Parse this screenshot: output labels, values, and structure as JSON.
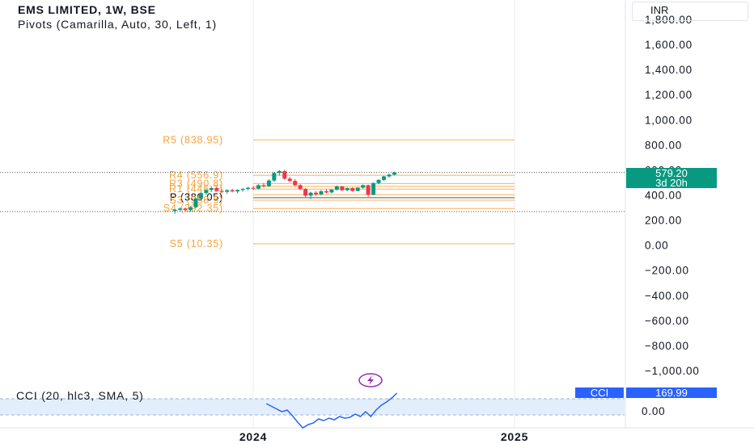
{
  "header": {
    "title": "EMS LIMITED, 1W, BSE",
    "subtitle": "Pivots (Camarilla, Auto, 30, Left, 1)"
  },
  "currency_label": "INR",
  "price_badge": {
    "price": "579.20",
    "countdown": "3d 20h"
  },
  "cci": {
    "label": "CCI (20, hlc3, SMA, 5)",
    "badge_name": "CCI",
    "badge_value": "169.99",
    "zero_label": "0.00"
  },
  "colors": {
    "pivot": "#f7a33a",
    "pivot_p": "#000000",
    "up": "#089981",
    "down": "#f23645",
    "cci_line": "#2962ff",
    "cci_band": "#e3eefc",
    "badge_green": "#089981",
    "badge_blue": "#2962ff",
    "lightning": "#9c27b0"
  },
  "chart_data": {
    "type": "candlestick",
    "title": "EMS LIMITED, 1W, BSE",
    "y_axis": {
      "range": [
        -1100,
        1900
      ],
      "ticks": [
        "1,800.00",
        "1,600.00",
        "1,400.00",
        "1,200.00",
        "1,000.00",
        "800.00",
        "600.00",
        "400.00",
        "200.00",
        "0.00",
        "−200.00",
        "−400.00",
        "−600.00",
        "−800.00",
        "−1,000.00"
      ],
      "tick_values": [
        1800,
        1600,
        1400,
        1200,
        1000,
        800,
        600,
        400,
        200,
        0,
        -200,
        -400,
        -600,
        -800,
        -1000
      ]
    },
    "x_axis": {
      "ticks": [
        "2024",
        "2025"
      ],
      "x_range": [
        2023.0,
        2025.0
      ],
      "tick_values": [
        2024,
        2025
      ]
    },
    "pivot_levels": [
      {
        "name": "R5",
        "label": "R5 (838.95)",
        "value": 838.95
      },
      {
        "name": "R4",
        "label": "R4 (556.9)",
        "value": 556.9
      },
      {
        "name": "R3",
        "label": "R3 (490.8)",
        "value": 490.8
      },
      {
        "name": "R2",
        "value": 468.7
      },
      {
        "name": "R1",
        "label": "R1 (446.7)",
        "value": 446.7
      },
      {
        "name": "P",
        "label": "P (380.05)",
        "value": 380.05
      },
      {
        "name": "S1",
        "value": 402.6
      },
      {
        "name": "S2",
        "value": 380.5
      },
      {
        "name": "S3",
        "label": "S3 (358.5)",
        "value": 358.5
      },
      {
        "name": "S4",
        "label": "S4 (292.35)",
        "value": 292.35
      },
      {
        "name": "S5",
        "label": "S5 (10.35)",
        "value": 10.35
      }
    ],
    "last_price": 579.2,
    "ohlc": [
      [
        2023.7,
        272,
        288,
        250,
        282
      ],
      [
        2023.72,
        282,
        300,
        265,
        292
      ],
      [
        2023.74,
        292,
        300,
        272,
        280
      ],
      [
        2023.76,
        280,
        310,
        265,
        302
      ],
      [
        2023.78,
        302,
        380,
        295,
        372
      ],
      [
        2023.8,
        372,
        425,
        360,
        415
      ],
      [
        2023.82,
        415,
        450,
        400,
        440
      ],
      [
        2023.84,
        440,
        465,
        425,
        455
      ],
      [
        2023.86,
        455,
        465,
        425,
        432
      ],
      [
        2023.88,
        432,
        445,
        415,
        425
      ],
      [
        2023.9,
        425,
        445,
        410,
        438
      ],
      [
        2023.92,
        438,
        450,
        420,
        428
      ],
      [
        2023.94,
        428,
        445,
        412,
        440
      ],
      [
        2023.96,
        440,
        455,
        425,
        448
      ],
      [
        2023.98,
        448,
        465,
        435,
        457
      ],
      [
        2024.0,
        457,
        470,
        440,
        450
      ],
      [
        2024.02,
        450,
        485,
        445,
        478
      ],
      [
        2024.04,
        478,
        495,
        460,
        470
      ],
      [
        2024.06,
        470,
        525,
        465,
        515
      ],
      [
        2024.08,
        515,
        585,
        505,
        575
      ],
      [
        2024.1,
        575,
        600,
        555,
        590
      ],
      [
        2024.12,
        590,
        600,
        520,
        530
      ],
      [
        2024.14,
        530,
        545,
        500,
        512
      ],
      [
        2024.16,
        512,
        525,
        470,
        478
      ],
      [
        2024.18,
        478,
        485,
        440,
        448
      ],
      [
        2024.2,
        448,
        455,
        380,
        395
      ],
      [
        2024.22,
        395,
        425,
        368,
        418
      ],
      [
        2024.24,
        418,
        432,
        395,
        405
      ],
      [
        2024.26,
        405,
        440,
        398,
        430
      ],
      [
        2024.28,
        430,
        445,
        412,
        420
      ],
      [
        2024.3,
        420,
        448,
        412,
        442
      ],
      [
        2024.32,
        442,
        475,
        435,
        468
      ],
      [
        2024.34,
        468,
        472,
        430,
        438
      ],
      [
        2024.36,
        438,
        460,
        430,
        455
      ],
      [
        2024.38,
        455,
        462,
        425,
        432
      ],
      [
        2024.4,
        432,
        462,
        428,
        458
      ],
      [
        2024.42,
        458,
        482,
        450,
        478
      ],
      [
        2024.44,
        478,
        482,
        385,
        402
      ],
      [
        2024.46,
        402,
        500,
        398,
        495
      ],
      [
        2024.48,
        495,
        525,
        485,
        520
      ],
      [
        2024.5,
        520,
        552,
        510,
        548
      ],
      [
        2024.52,
        548,
        570,
        538,
        562
      ],
      [
        2024.54,
        562,
        585,
        555,
        579.2
      ]
    ],
    "cci_series": {
      "name": "CCI",
      "x": [
        2024.05,
        2024.08,
        2024.11,
        2024.13,
        2024.15,
        2024.17,
        2024.19,
        2024.21,
        2024.23,
        2024.25,
        2024.27,
        2024.29,
        2024.31,
        2024.33,
        2024.35,
        2024.37,
        2024.39,
        2024.41,
        2024.43,
        2024.45,
        2024.47,
        2024.49,
        2024.51,
        2024.53,
        2024.55
      ],
      "y": [
        40,
        -10,
        -60,
        -40,
        -110,
        -190,
        -260,
        -220,
        -200,
        -150,
        -170,
        -140,
        -160,
        -120,
        -140,
        -130,
        -90,
        -120,
        -60,
        -120,
        -40,
        20,
        60,
        110,
        169.99
      ]
    },
    "cci_ylim": [
      -260,
      220
    ]
  }
}
